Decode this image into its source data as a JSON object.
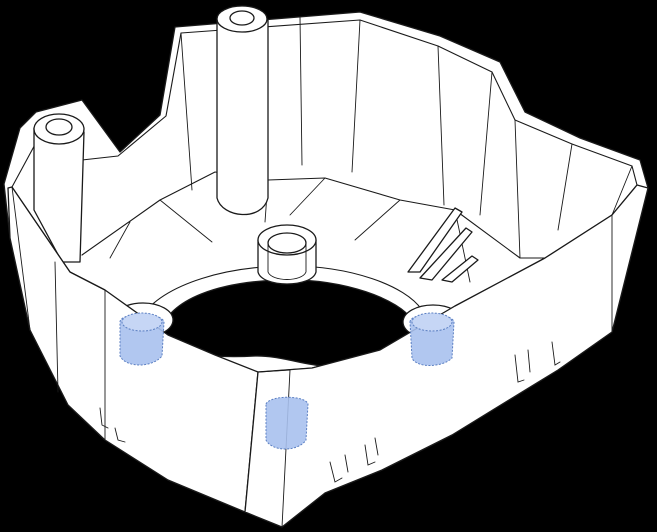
{
  "colors": {
    "background": "#000000",
    "outline": "#1a1a1a",
    "part_fill": "#ffffff",
    "insert_fill": "#a9c1ee",
    "insert_stroke": "#5b7fc2"
  },
  "part": {
    "features": {
      "posts": [
        "left-post",
        "back-post"
      ],
      "bosses": [
        "center-boss",
        "left-boss",
        "right-boss"
      ],
      "inserts": [
        "left-boss-insert",
        "right-boss-insert",
        "front-wall-insert"
      ],
      "ribs": [
        "snap-rib-1",
        "snap-rib-2",
        "snap-rib-3"
      ],
      "base_opening": "center-opening"
    }
  }
}
